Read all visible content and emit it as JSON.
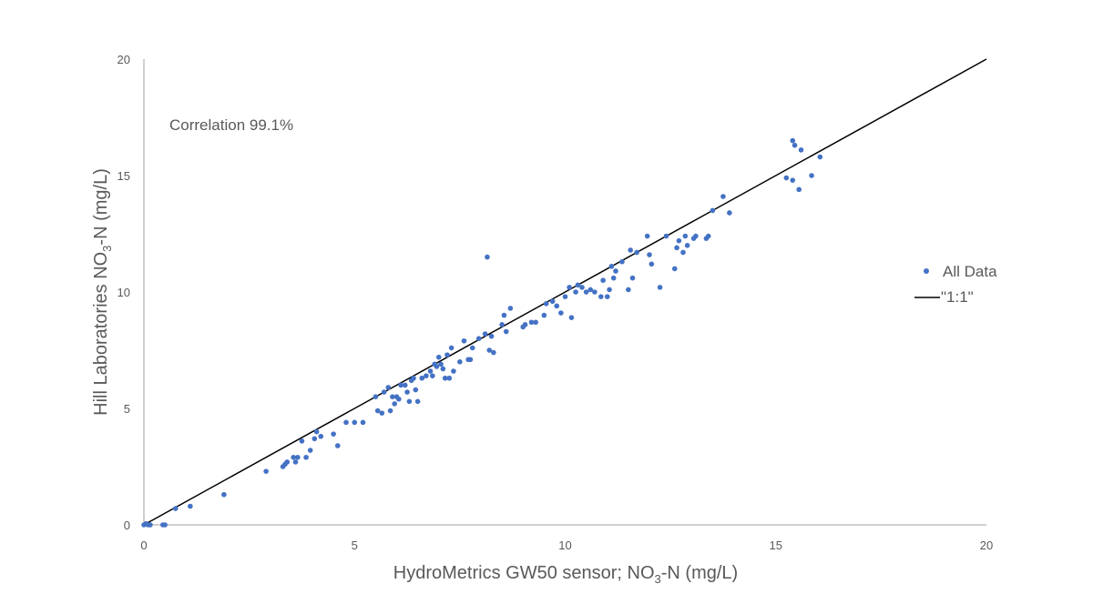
{
  "chart_data": {
    "type": "scatter",
    "xlabel": {
      "pre": "HydroMetrics  GW50 sensor;  NO",
      "sub": "3",
      "post": "-N  (mg/L)"
    },
    "ylabel": {
      "pre": "Hill Laboratories  NO",
      "sub": "3",
      "post": "-N  (mg/L)"
    },
    "annotation": "Correlation 99.1%",
    "xlim": [
      0,
      20
    ],
    "ylim": [
      0,
      20
    ],
    "xticks": [
      "0",
      "5",
      "10",
      "15",
      "20"
    ],
    "yticks": [
      "0",
      "5",
      "10",
      "15",
      "20"
    ],
    "grid": false,
    "legend_position": "right",
    "series": [
      {
        "name": "All Data",
        "kind": "scatter",
        "color": "#4472c4",
        "points": [
          [
            0.0,
            0.0
          ],
          [
            0.05,
            0.05
          ],
          [
            0.1,
            0.0
          ],
          [
            0.15,
            0.0
          ],
          [
            0.45,
            0.0
          ],
          [
            0.5,
            0.0
          ],
          [
            0.75,
            0.7
          ],
          [
            1.1,
            0.8
          ],
          [
            1.9,
            1.3
          ],
          [
            2.9,
            2.3
          ],
          [
            3.3,
            2.5
          ],
          [
            3.35,
            2.6
          ],
          [
            3.4,
            2.7
          ],
          [
            3.55,
            2.9
          ],
          [
            3.6,
            2.7
          ],
          [
            3.65,
            2.9
          ],
          [
            3.75,
            3.6
          ],
          [
            3.85,
            2.9
          ],
          [
            3.95,
            3.2
          ],
          [
            4.05,
            3.7
          ],
          [
            4.1,
            4.0
          ],
          [
            4.2,
            3.8
          ],
          [
            4.5,
            3.9
          ],
          [
            4.6,
            3.4
          ],
          [
            4.8,
            4.4
          ],
          [
            5.0,
            4.4
          ],
          [
            5.2,
            4.4
          ],
          [
            5.5,
            5.5
          ],
          [
            5.55,
            4.9
          ],
          [
            5.65,
            4.8
          ],
          [
            5.7,
            5.7
          ],
          [
            5.8,
            5.9
          ],
          [
            5.85,
            4.9
          ],
          [
            5.9,
            5.5
          ],
          [
            5.95,
            5.2
          ],
          [
            6.0,
            5.5
          ],
          [
            6.05,
            5.4
          ],
          [
            6.1,
            6.0
          ],
          [
            6.2,
            6.0
          ],
          [
            6.25,
            5.7
          ],
          [
            6.3,
            5.3
          ],
          [
            6.35,
            6.2
          ],
          [
            6.4,
            6.3
          ],
          [
            6.45,
            5.8
          ],
          [
            6.5,
            5.3
          ],
          [
            6.6,
            6.3
          ],
          [
            6.7,
            6.4
          ],
          [
            6.8,
            6.6
          ],
          [
            6.85,
            6.4
          ],
          [
            6.9,
            6.9
          ],
          [
            6.95,
            6.8
          ],
          [
            7.0,
            7.2
          ],
          [
            7.05,
            6.9
          ],
          [
            7.1,
            6.7
          ],
          [
            7.15,
            6.3
          ],
          [
            7.2,
            7.3
          ],
          [
            7.25,
            6.3
          ],
          [
            7.3,
            7.6
          ],
          [
            7.35,
            6.6
          ],
          [
            7.5,
            7.0
          ],
          [
            7.6,
            7.9
          ],
          [
            7.7,
            7.1
          ],
          [
            7.75,
            7.1
          ],
          [
            7.8,
            7.6
          ],
          [
            7.95,
            8.0
          ],
          [
            8.1,
            8.2
          ],
          [
            8.15,
            11.5
          ],
          [
            8.2,
            7.5
          ],
          [
            8.25,
            8.1
          ],
          [
            8.3,
            7.4
          ],
          [
            8.5,
            8.6
          ],
          [
            8.55,
            9.0
          ],
          [
            8.6,
            8.3
          ],
          [
            8.7,
            9.3
          ],
          [
            9.0,
            8.5
          ],
          [
            9.05,
            8.6
          ],
          [
            9.2,
            8.7
          ],
          [
            9.3,
            8.7
          ],
          [
            9.5,
            9.0
          ],
          [
            9.55,
            9.5
          ],
          [
            9.7,
            9.6
          ],
          [
            9.8,
            9.4
          ],
          [
            9.9,
            9.1
          ],
          [
            10.0,
            9.8
          ],
          [
            10.1,
            10.2
          ],
          [
            10.15,
            8.9
          ],
          [
            10.25,
            10.0
          ],
          [
            10.3,
            10.3
          ],
          [
            10.4,
            10.2
          ],
          [
            10.5,
            10.0
          ],
          [
            10.6,
            10.1
          ],
          [
            10.7,
            10.0
          ],
          [
            10.85,
            9.8
          ],
          [
            10.9,
            10.5
          ],
          [
            11.0,
            9.8
          ],
          [
            11.05,
            10.1
          ],
          [
            11.1,
            11.1
          ],
          [
            11.15,
            10.6
          ],
          [
            11.2,
            10.9
          ],
          [
            11.35,
            11.3
          ],
          [
            11.5,
            10.1
          ],
          [
            11.55,
            11.8
          ],
          [
            11.6,
            10.6
          ],
          [
            11.7,
            11.7
          ],
          [
            11.95,
            12.4
          ],
          [
            12.0,
            11.6
          ],
          [
            12.05,
            11.2
          ],
          [
            12.25,
            10.2
          ],
          [
            12.4,
            12.4
          ],
          [
            12.6,
            11.0
          ],
          [
            12.65,
            11.9
          ],
          [
            12.7,
            12.2
          ],
          [
            12.8,
            11.7
          ],
          [
            12.85,
            12.4
          ],
          [
            12.9,
            12.0
          ],
          [
            13.05,
            12.3
          ],
          [
            13.1,
            12.4
          ],
          [
            13.35,
            12.3
          ],
          [
            13.4,
            12.4
          ],
          [
            13.5,
            13.5
          ],
          [
            13.75,
            14.1
          ],
          [
            13.9,
            13.4
          ],
          [
            15.25,
            14.9
          ],
          [
            15.4,
            16.5
          ],
          [
            15.45,
            16.3
          ],
          [
            15.4,
            14.8
          ],
          [
            15.6,
            16.1
          ],
          [
            15.55,
            14.4
          ],
          [
            15.85,
            15.0
          ],
          [
            16.05,
            15.8
          ]
        ]
      },
      {
        "name": "\"1:1\"",
        "kind": "line",
        "color": "#000000",
        "points": [
          [
            0,
            0
          ],
          [
            20,
            20
          ]
        ]
      }
    ]
  }
}
